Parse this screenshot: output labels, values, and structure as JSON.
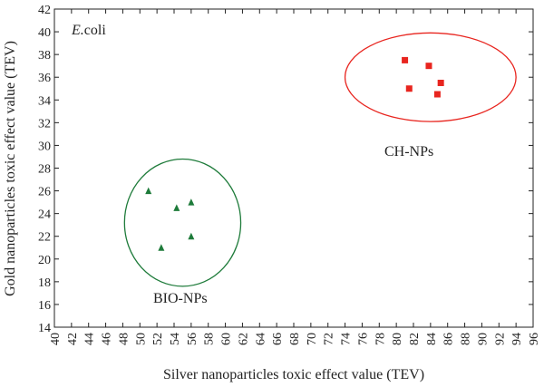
{
  "chart_data": {
    "type": "scatter",
    "title": "",
    "xlabel": "Silver nanoparticles toxic effect value (TEV)",
    "ylabel": "Gold nanoparticles toxic effect value (TEV)",
    "xlim": [
      40,
      96
    ],
    "ylim": [
      14,
      42
    ],
    "x_ticks": [
      "40",
      "42",
      "44",
      "46",
      "48",
      "50",
      "52",
      "54",
      "56",
      "58",
      "60",
      "62",
      "64",
      "66",
      "68",
      "70",
      "72",
      "74",
      "76",
      "78",
      "80",
      "82",
      "84",
      "86",
      "88",
      "90",
      "92",
      "94",
      "96"
    ],
    "y_ticks": [
      "14",
      "16",
      "18",
      "20",
      "22",
      "24",
      "26",
      "28",
      "30",
      "32",
      "34",
      "36",
      "38",
      "40",
      "42"
    ],
    "organism_label": {
      "italic": "E.",
      "plain": "coli"
    },
    "grid": false,
    "series": [
      {
        "name": "BIO-NPs",
        "marker": "triangle",
        "color": "#1e7b3a",
        "points": [
          {
            "x": 51.0,
            "y": 26.0
          },
          {
            "x": 52.5,
            "y": 21.0
          },
          {
            "x": 54.3,
            "y": 24.5
          },
          {
            "x": 56.0,
            "y": 25.0
          },
          {
            "x": 56.0,
            "y": 22.0
          }
        ],
        "ellipse": {
          "cx": 55.0,
          "cy": 23.2,
          "rx": 6.8,
          "ry": 5.6
        }
      },
      {
        "name": "CH-NPs",
        "marker": "square",
        "color": "#e8251f",
        "points": [
          {
            "x": 81.0,
            "y": 37.5
          },
          {
            "x": 81.5,
            "y": 35.0
          },
          {
            "x": 83.8,
            "y": 37.0
          },
          {
            "x": 85.2,
            "y": 35.5
          },
          {
            "x": 84.8,
            "y": 34.5
          }
        ],
        "ellipse": {
          "cx": 84.0,
          "cy": 36.0,
          "rx": 10.0,
          "ry": 3.9
        }
      }
    ]
  }
}
